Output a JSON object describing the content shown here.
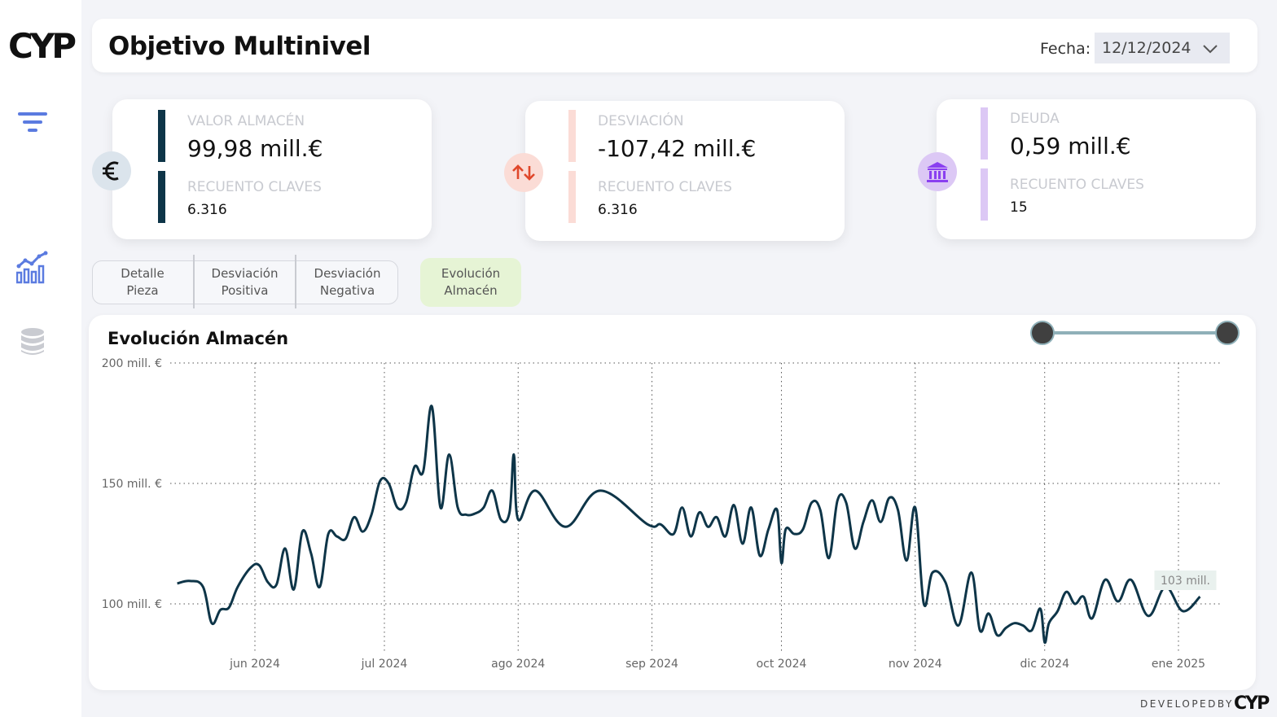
{
  "app": {
    "logo": "CYP"
  },
  "sidebar": {
    "items": [
      {
        "icon": "filter-icon",
        "color": "#5b7be0"
      },
      {
        "icon": "chart-icon",
        "color": "#5b7be0"
      },
      {
        "icon": "database-icon",
        "color": "#c9cbd1"
      }
    ]
  },
  "header": {
    "title": "Objetivo Multinivel",
    "date_label": "Fecha:",
    "date_value": "12/12/2024"
  },
  "kpis": [
    {
      "icon": "euro-icon",
      "accent": "#0e3548",
      "badge_bg": "#dbe4ec",
      "label": "VALOR ALMACÉN",
      "value": "99,98 mill.€",
      "count_label": "RECUENTO CLAVES",
      "count": "6.316"
    },
    {
      "icon": "arrows-up-down-icon",
      "accent": "#fbdcd6",
      "badge_bg": "#fbdcd6",
      "label": "DESVIACIÓN",
      "value": "-107,42 mill.€",
      "count_label": "RECUENTO CLAVES",
      "count": "6.316"
    },
    {
      "icon": "bank-icon",
      "accent": "#dcc8f5",
      "badge_bg": "#dcc8f5",
      "label": "DEUDA",
      "value": "0,59 mill.€",
      "count_label": "RECUENTO CLAVES",
      "count": "15"
    }
  ],
  "tabs": [
    {
      "label_1": "Detalle",
      "label_2": "Pieza",
      "active": false
    },
    {
      "label_1": "Desviación",
      "label_2": "Positiva",
      "active": false
    },
    {
      "label_1": "Desviación",
      "label_2": "Negativa",
      "active": false
    },
    {
      "label_1": "Evolución",
      "label_2": "Almacén",
      "active": true,
      "active_bg": "#e6f4d5"
    }
  ],
  "chart_data": {
    "type": "line",
    "title": "Evolución Almacén",
    "xlabel": "",
    "ylabel": "",
    "y_unit": "mill. €",
    "ylim": [
      100,
      200
    ],
    "y_ticks": [
      {
        "value": 200,
        "label": "200 mill. €"
      },
      {
        "value": 150,
        "label": "150 mill. €"
      },
      {
        "value": 100,
        "label": "100 mill. €"
      }
    ],
    "x_ticks": [
      {
        "date": "2024-06-01",
        "label": "jun 2024"
      },
      {
        "date": "2024-07-01",
        "label": "jul 2024"
      },
      {
        "date": "2024-08-01",
        "label": "ago 2024"
      },
      {
        "date": "2024-09-01",
        "label": "sep 2024"
      },
      {
        "date": "2024-10-01",
        "label": "oct 2024"
      },
      {
        "date": "2024-11-01",
        "label": "nov 2024"
      },
      {
        "date": "2024-12-01",
        "label": "dic 2024"
      },
      {
        "date": "2025-01-01",
        "label": "ene 2025"
      }
    ],
    "grid": true,
    "line_color": "#0e3548",
    "last_value_label": "103 mill.",
    "series": [
      {
        "x": [
          "2024-05-14",
          "2024-05-17",
          "2024-05-20",
          "2024-05-22",
          "2024-05-24",
          "2024-05-26",
          "2024-05-28",
          "2024-05-31",
          "2024-06-02",
          "2024-06-04",
          "2024-06-06",
          "2024-06-08",
          "2024-06-10",
          "2024-06-12",
          "2024-06-14",
          "2024-06-16",
          "2024-06-18",
          "2024-06-20",
          "2024-06-22",
          "2024-06-24",
          "2024-06-26",
          "2024-06-28",
          "2024-06-30",
          "2024-07-02",
          "2024-07-04",
          "2024-07-06",
          "2024-07-08",
          "2024-07-10",
          "2024-07-12",
          "2024-07-14",
          "2024-07-16",
          "2024-07-18",
          "2024-07-20",
          "2024-07-22",
          "2024-07-24",
          "2024-07-26",
          "2024-07-28",
          "2024-07-30",
          "2024-07-31",
          "2024-08-01",
          "2024-08-05",
          "2024-08-12",
          "2024-08-20",
          "2024-08-31",
          "2024-09-03",
          "2024-09-06",
          "2024-09-08",
          "2024-09-10",
          "2024-09-12",
          "2024-09-14",
          "2024-09-16",
          "2024-09-18",
          "2024-09-20",
          "2024-09-22",
          "2024-09-24",
          "2024-09-26",
          "2024-09-28",
          "2024-09-30",
          "2024-10-01",
          "2024-10-02",
          "2024-10-04",
          "2024-10-06",
          "2024-10-08",
          "2024-10-10",
          "2024-10-12",
          "2024-10-14",
          "2024-10-16",
          "2024-10-18",
          "2024-10-20",
          "2024-10-22",
          "2024-10-24",
          "2024-10-26",
          "2024-10-28",
          "2024-10-30",
          "2024-11-01",
          "2024-11-03",
          "2024-11-05",
          "2024-11-08",
          "2024-11-11",
          "2024-11-14",
          "2024-11-16",
          "2024-11-18",
          "2024-11-20",
          "2024-11-22",
          "2024-11-24",
          "2024-11-26",
          "2024-11-28",
          "2024-11-30",
          "2024-12-01",
          "2024-12-02",
          "2024-12-04",
          "2024-12-06",
          "2024-12-08",
          "2024-12-10",
          "2024-12-12",
          "2024-12-15",
          "2024-12-18",
          "2024-12-21",
          "2024-12-25",
          "2024-12-29",
          "2025-01-02",
          "2025-01-06"
        ],
        "values": [
          108.5,
          109.5,
          107,
          92,
          97.5,
          98.5,
          107,
          115,
          116,
          109,
          108,
          123,
          106,
          130,
          121,
          107,
          129,
          128,
          127,
          136,
          130,
          137,
          151,
          150,
          140,
          142,
          157,
          155,
          182,
          140,
          162,
          140,
          137,
          137.5,
          140,
          147,
          135,
          138,
          162,
          135,
          147,
          132,
          147,
          133,
          133,
          129,
          140,
          128,
          138,
          132,
          136,
          128,
          141,
          125,
          140,
          120,
          131,
          139,
          117,
          131,
          129,
          131,
          142,
          139,
          119,
          143,
          142,
          123,
          134,
          143,
          134,
          144,
          139,
          118,
          140,
          100,
          113,
          109,
          91,
          113,
          89,
          96,
          87,
          90,
          92,
          91,
          89,
          98,
          84,
          92,
          97,
          105,
          100,
          103,
          94,
          110,
          101,
          110,
          95,
          107,
          97,
          103
        ]
      }
    ],
    "slider": {
      "min_label": "",
      "max_label": ""
    }
  },
  "footer": {
    "developed_by": "DEVELOPEDBY",
    "logo": "CYP"
  }
}
